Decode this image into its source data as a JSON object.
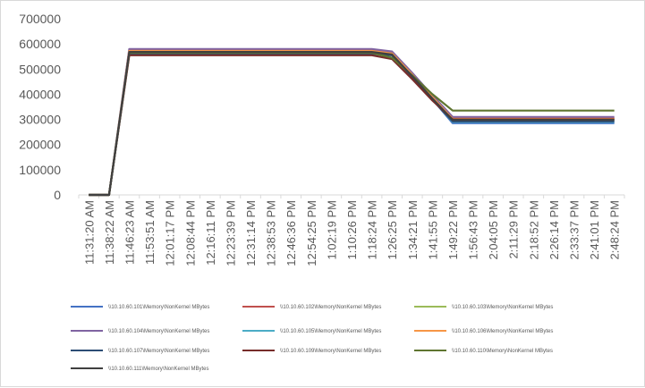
{
  "chart_data": {
    "type": "line",
    "title": "",
    "xlabel": "",
    "ylabel": "",
    "ylim": [
      0,
      700000
    ],
    "yticks": [
      0,
      100000,
      200000,
      300000,
      400000,
      500000,
      600000,
      700000
    ],
    "ytick_labels": [
      "0",
      "100000",
      "200000",
      "300000",
      "400000",
      "500000",
      "600000",
      "700000"
    ],
    "x_labels": [
      "11:31:20 AM",
      "11:38:22 AM",
      "11:46:23 AM",
      "11:53:51 AM",
      "12:01:17 PM",
      "12:08:44 PM",
      "12:16:11 PM",
      "12:23:39 PM",
      "12:31:14 PM",
      "12:38:53 PM",
      "12:46:36 PM",
      "12:54:25 PM",
      "1:02:19 PM",
      "1:10:26 PM",
      "1:18:24 PM",
      "1:26:25 PM",
      "1:34:21 PM",
      "1:41:55 PM",
      "1:49:22 PM",
      "1:56:43 PM",
      "2:04:05 PM",
      "2:11:29 PM",
      "2:18:52 PM",
      "2:26:14 PM",
      "2:33:37 PM",
      "2:41:01 PM",
      "2:48:24 PM"
    ],
    "grid": {
      "horizontal": false,
      "vertical": false
    },
    "legend_position": "bottom",
    "series": [
      {
        "name": "\\\\10.10.60.101\\Memory\\NonKernel MBytes",
        "color": "#4472c4",
        "values": [
          0,
          0,
          560000,
          560000,
          560000,
          560000,
          560000,
          560000,
          560000,
          560000,
          560000,
          560000,
          560000,
          560000,
          560000,
          555000,
          470000,
          380000,
          285000,
          285000,
          285000,
          285000,
          285000,
          285000,
          285000,
          285000,
          285000
        ]
      },
      {
        "name": "\\\\10.10.60.102\\Memory\\NonKernel MBytes",
        "color": "#c0504d",
        "values": [
          0,
          0,
          575000,
          575000,
          575000,
          575000,
          575000,
          575000,
          575000,
          575000,
          575000,
          575000,
          575000,
          575000,
          575000,
          565000,
          480000,
          390000,
          305000,
          305000,
          305000,
          305000,
          305000,
          305000,
          305000,
          305000,
          305000
        ]
      },
      {
        "name": "\\\\10.10.60.103\\Memory\\NonKernel MBytes",
        "color": "#9bbb59",
        "values": [
          0,
          0,
          570000,
          570000,
          570000,
          570000,
          570000,
          570000,
          570000,
          570000,
          570000,
          570000,
          570000,
          570000,
          570000,
          560000,
          475000,
          385000,
          300000,
          300000,
          300000,
          300000,
          300000,
          300000,
          300000,
          300000,
          300000
        ]
      },
      {
        "name": "\\\\10.10.60.104\\Memory\\NonKernel MBytes",
        "color": "#8064a2",
        "values": [
          0,
          0,
          580000,
          580000,
          580000,
          580000,
          580000,
          580000,
          580000,
          580000,
          580000,
          580000,
          580000,
          580000,
          580000,
          570000,
          485000,
          395000,
          310000,
          310000,
          310000,
          310000,
          310000,
          310000,
          310000,
          310000,
          310000
        ]
      },
      {
        "name": "\\\\10.10.60.105\\Memory\\NonKernel MBytes",
        "color": "#4bacc6",
        "values": [
          0,
          0,
          565000,
          565000,
          565000,
          565000,
          565000,
          565000,
          565000,
          565000,
          565000,
          565000,
          565000,
          565000,
          565000,
          560000,
          470000,
          380000,
          290000,
          290000,
          290000,
          290000,
          290000,
          290000,
          290000,
          290000,
          290000
        ]
      },
      {
        "name": "\\\\10.10.60.106\\Memory\\NonKernel MBytes",
        "color": "#f79646",
        "values": [
          0,
          0,
          572000,
          572000,
          572000,
          572000,
          572000,
          572000,
          572000,
          572000,
          572000,
          572000,
          572000,
          572000,
          572000,
          562000,
          478000,
          388000,
          302000,
          302000,
          302000,
          302000,
          302000,
          302000,
          302000,
          302000,
          302000
        ]
      },
      {
        "name": "\\\\10.10.60.107\\Memory\\NonKernel MBytes",
        "color": "#2c4d75",
        "values": [
          0,
          0,
          562000,
          562000,
          562000,
          562000,
          562000,
          562000,
          562000,
          562000,
          562000,
          562000,
          562000,
          562000,
          562000,
          555000,
          468000,
          378000,
          292000,
          292000,
          292000,
          292000,
          292000,
          292000,
          292000,
          292000,
          292000
        ]
      },
      {
        "name": "\\\\10.10.60.109\\Memory\\NonKernel MBytes",
        "color": "#772c2a",
        "values": [
          0,
          0,
          555000,
          555000,
          555000,
          555000,
          555000,
          555000,
          555000,
          555000,
          555000,
          555000,
          555000,
          555000,
          555000,
          540000,
          460000,
          375000,
          300000,
          300000,
          300000,
          300000,
          300000,
          300000,
          300000,
          300000,
          300000
        ]
      },
      {
        "name": "\\\\10.10.60.110\\Memory\\NonKernel MBytes",
        "color": "#5f7530",
        "values": [
          0,
          0,
          565000,
          565000,
          565000,
          565000,
          565000,
          565000,
          565000,
          565000,
          565000,
          565000,
          565000,
          565000,
          565000,
          545000,
          475000,
          400000,
          335000,
          335000,
          335000,
          335000,
          335000,
          335000,
          335000,
          335000,
          335000
        ]
      },
      {
        "name": "\\\\10.10.60.111\\Memory\\NonKernel MBytes",
        "color": "#404040",
        "values": [
          0,
          0,
          568000,
          568000,
          568000,
          568000,
          568000,
          568000,
          568000,
          568000,
          568000,
          568000,
          568000,
          568000,
          568000,
          558000,
          472000,
          383000,
          298000,
          298000,
          298000,
          298000,
          298000,
          298000,
          298000,
          298000,
          298000
        ]
      }
    ]
  }
}
